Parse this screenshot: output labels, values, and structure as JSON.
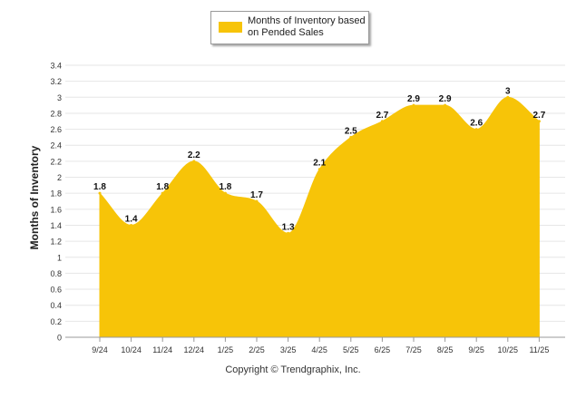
{
  "chart_data": {
    "type": "area",
    "title": "",
    "xlabel": "",
    "ylabel": "Months of Inventory",
    "categories": [
      "9/24",
      "10/24",
      "11/24",
      "12/24",
      "1/25",
      "2/25",
      "3/25",
      "4/25",
      "5/25",
      "6/25",
      "7/25",
      "8/25",
      "9/25",
      "10/25",
      "11/25"
    ],
    "series": [
      {
        "name": "Months of Inventory based on Pended Sales",
        "values": [
          1.8,
          1.4,
          1.8,
          2.2,
          1.8,
          1.7,
          1.3,
          2.1,
          2.5,
          2.7,
          2.9,
          2.9,
          2.6,
          3,
          2.7
        ],
        "color": "#F7C408"
      }
    ],
    "ylim": [
      0,
      3.4
    ],
    "yticks": [
      "0",
      "0.2",
      "0.4",
      "0.6",
      "0.8",
      "1",
      "1.2",
      "1.4",
      "1.6",
      "1.8",
      "2",
      "2.2",
      "2.4",
      "2.6",
      "2.8",
      "3",
      "3.2",
      "3.4"
    ],
    "grid": true,
    "legend_position": "top-center"
  },
  "footer": {
    "copyright": "Copyright © Trendgraphix, Inc."
  },
  "colors": {
    "area": "#F7C408",
    "grid": "#e6e6e6",
    "axis_text": "#222222"
  }
}
